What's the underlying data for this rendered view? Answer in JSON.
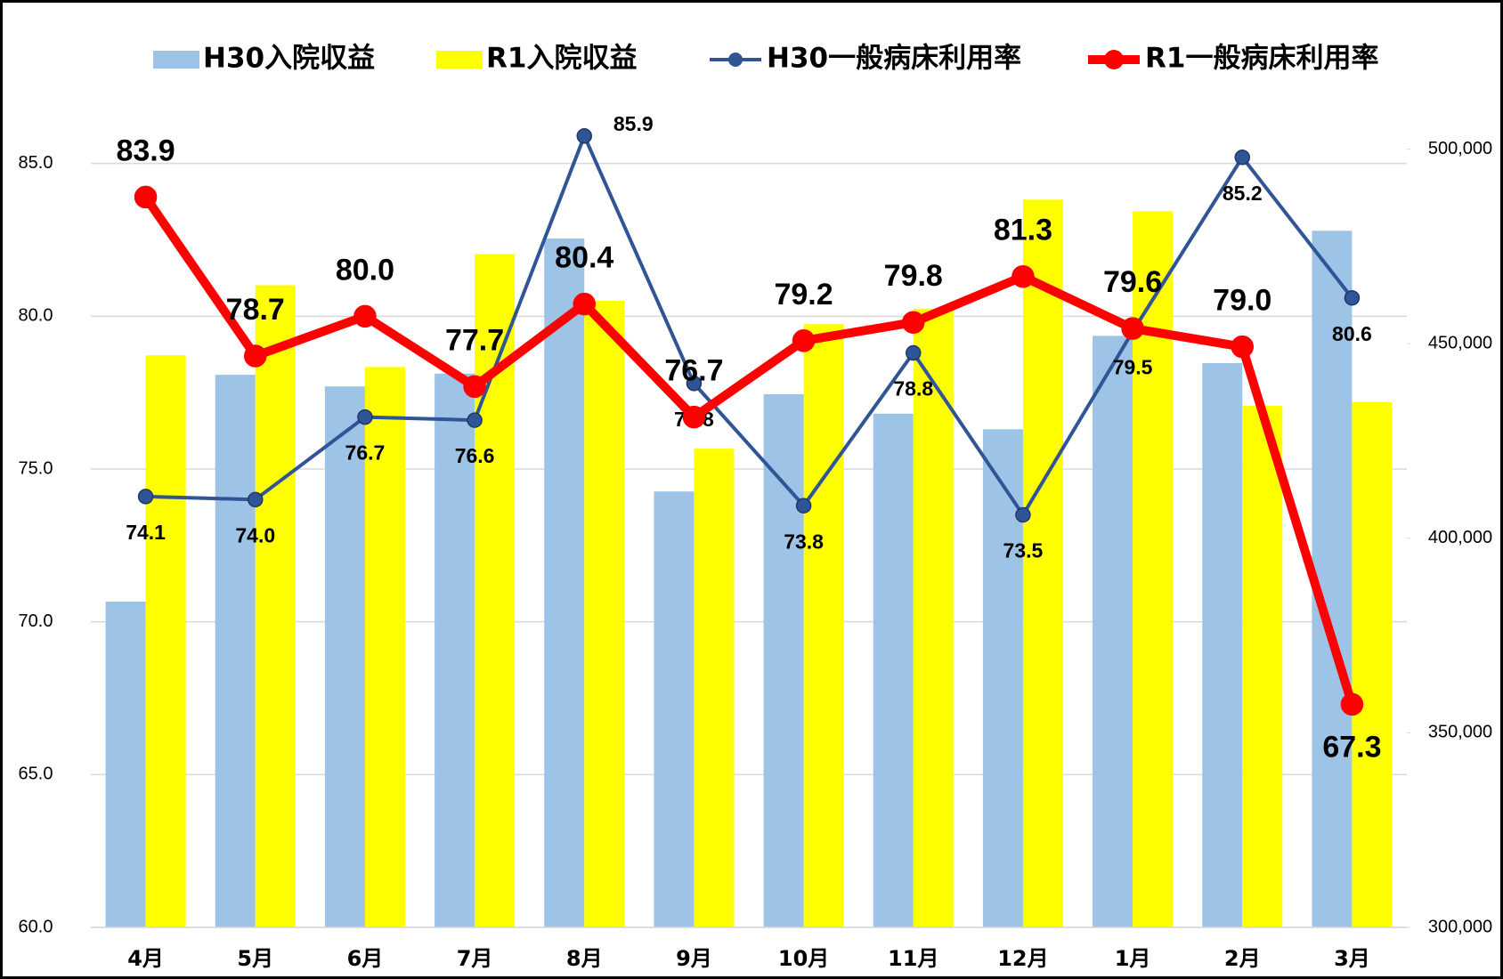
{
  "chart_data": {
    "type": "bar",
    "categories": [
      "4月",
      "5月",
      "6月",
      "7月",
      "8月",
      "9月",
      "10月",
      "11月",
      "12月",
      "1月",
      "2月",
      "3月"
    ],
    "series": [
      {
        "name": "H30入院収益",
        "type": "bar",
        "axis": "y2",
        "color": "#9dc3e6",
        "values": [
          383700,
          442000,
          439000,
          442300,
          477000,
          412000,
          437000,
          432000,
          428000,
          452000,
          445000,
          479000
        ]
      },
      {
        "name": "R1入院収益",
        "type": "bar",
        "axis": "y2",
        "color": "#ffff00",
        "values": [
          447000,
          465000,
          444000,
          473000,
          461000,
          423000,
          455000,
          459000,
          487000,
          484000,
          434000,
          435000
        ]
      },
      {
        "name": "H30一般病床利用率",
        "type": "line",
        "color": "#2f5597",
        "values": [
          74.1,
          74.0,
          76.7,
          76.6,
          85.9,
          77.8,
          73.8,
          78.8,
          73.5,
          79.5,
          85.2,
          80.6
        ],
        "value_labels": [
          "74.1",
          "74.0",
          "76.7",
          "76.6",
          "85.9",
          "77.8",
          "73.8",
          "78.8",
          "73.5",
          "79.5",
          "85.2",
          "80.6"
        ]
      },
      {
        "name": "R1一般病床利用率",
        "type": "line",
        "color": "#ff0000",
        "values": [
          83.9,
          78.7,
          80.0,
          77.7,
          80.4,
          76.7,
          79.2,
          79.8,
          81.3,
          79.6,
          79.0,
          67.3
        ],
        "value_labels": [
          "83.9",
          "78.7",
          "80.0",
          "77.7",
          "80.4",
          "76.7",
          "79.2",
          "79.8",
          "81.3",
          "79.6",
          "79.0",
          "67.3"
        ]
      }
    ],
    "ylim": [
      60,
      87
    ],
    "yticks": [
      {
        "value": 60,
        "label": "60.0"
      },
      {
        "value": 65,
        "label": "65.0"
      },
      {
        "value": 70,
        "label": "70.0"
      },
      {
        "value": 75,
        "label": "75.0"
      },
      {
        "value": 80,
        "label": "80.0"
      },
      {
        "value": 85,
        "label": "85.0"
      }
    ],
    "y2lim": [
      300000,
      512000
    ],
    "y2ticks": [
      {
        "value": 300000,
        "label": "300,000"
      },
      {
        "value": 350000,
        "label": "350,000"
      },
      {
        "value": 400000,
        "label": "400,000"
      },
      {
        "value": 450000,
        "label": "450,000"
      },
      {
        "value": 500000,
        "label": "500,000"
      }
    ],
    "grid": true,
    "legend": "top"
  }
}
